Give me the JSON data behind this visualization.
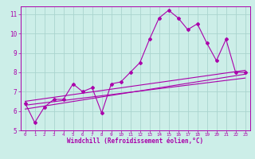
{
  "xlabel": "Windchill (Refroidissement éolien,°C)",
  "bg_color": "#cceee8",
  "grid_color": "#aad4ce",
  "line_color": "#aa00aa",
  "spine_color": "#aa00aa",
  "xlim": [
    -0.5,
    23.5
  ],
  "ylim": [
    5,
    11.4
  ],
  "xticks": [
    0,
    1,
    2,
    3,
    4,
    5,
    6,
    7,
    8,
    9,
    10,
    11,
    12,
    13,
    14,
    15,
    16,
    17,
    18,
    19,
    20,
    21,
    22,
    23
  ],
  "yticks": [
    5,
    6,
    7,
    8,
    9,
    10,
    11
  ],
  "series1": [
    6.4,
    5.4,
    6.2,
    6.6,
    6.6,
    7.4,
    7.0,
    7.2,
    5.9,
    7.4,
    7.5,
    8.0,
    8.5,
    9.7,
    10.8,
    11.2,
    10.8,
    10.2,
    10.5,
    9.5,
    8.6,
    9.7,
    8.0,
    8.0
  ],
  "trend1_x": [
    0,
    23
  ],
  "trend1_y": [
    6.1,
    7.9
  ],
  "trend2_x": [
    0,
    23
  ],
  "trend2_y": [
    6.3,
    7.7
  ],
  "trend3_x": [
    0,
    23
  ],
  "trend3_y": [
    6.5,
    8.1
  ],
  "xlabel_fontsize": 5.5,
  "tick_fontsize_x": 4.2,
  "tick_fontsize_y": 5.5
}
